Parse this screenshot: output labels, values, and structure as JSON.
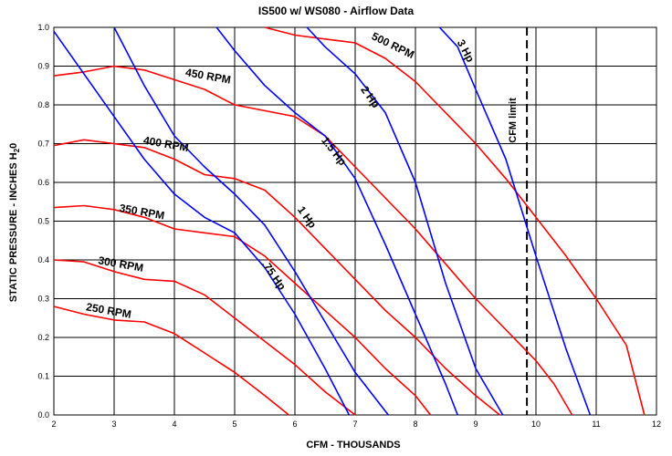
{
  "chart_data": {
    "type": "line",
    "title": "IS500 w/ WS080 - Airflow Data",
    "xlabel": "CFM - THOUSANDS",
    "ylabel_main": "STATIC PRESSURE - INCHES H",
    "ylabel_sub": "2",
    "ylabel_tail": "0",
    "xlim": [
      2,
      12
    ],
    "ylim": [
      0,
      1.0
    ],
    "xticks": [
      "2",
      "3",
      "4",
      "5",
      "6",
      "7",
      "8",
      "9",
      "10",
      "11",
      "12"
    ],
    "yticks": [
      "0.0",
      "0.1",
      "0.2",
      "0.3",
      "0.4",
      "0.5",
      "0.6",
      "0.7",
      "0.8",
      "0.9",
      "1.0"
    ],
    "grid": true,
    "colors": {
      "rpm": "#ff0000",
      "hp": "#0000ff",
      "limit": "#000000",
      "grid": "#000000"
    },
    "rpm_curves": [
      {
        "name": "250 RPM",
        "points": [
          [
            2.0,
            0.28
          ],
          [
            2.5,
            0.26
          ],
          [
            3.0,
            0.245
          ],
          [
            3.5,
            0.24
          ],
          [
            4.0,
            0.21
          ],
          [
            4.5,
            0.16
          ],
          [
            5.0,
            0.11
          ],
          [
            5.5,
            0.05
          ],
          [
            5.9,
            0.0
          ]
        ],
        "label_at": [
          2.9,
          0.26
        ],
        "label_angle": 10
      },
      {
        "name": "300 RPM",
        "points": [
          [
            2.0,
            0.4
          ],
          [
            2.5,
            0.395
          ],
          [
            3.0,
            0.37
          ],
          [
            3.5,
            0.35
          ],
          [
            4.0,
            0.345
          ],
          [
            4.5,
            0.31
          ],
          [
            5.0,
            0.25
          ],
          [
            5.5,
            0.19
          ],
          [
            6.0,
            0.13
          ],
          [
            6.5,
            0.06
          ],
          [
            7.0,
            0.0
          ]
        ],
        "label_at": [
          3.1,
          0.38
        ],
        "label_angle": 10
      },
      {
        "name": "350 RPM",
        "points": [
          [
            2.0,
            0.535
          ],
          [
            2.5,
            0.54
          ],
          [
            3.0,
            0.53
          ],
          [
            3.5,
            0.51
          ],
          [
            4.0,
            0.48
          ],
          [
            4.5,
            0.47
          ],
          [
            5.0,
            0.46
          ],
          [
            5.5,
            0.41
          ],
          [
            6.0,
            0.34
          ],
          [
            6.5,
            0.27
          ],
          [
            7.0,
            0.2
          ],
          [
            7.5,
            0.12
          ],
          [
            8.0,
            0.05
          ],
          [
            8.25,
            0.0
          ]
        ],
        "label_at": [
          3.45,
          0.515
        ],
        "label_angle": 10
      },
      {
        "name": "400 RPM",
        "points": [
          [
            2.0,
            0.695
          ],
          [
            2.5,
            0.71
          ],
          [
            3.0,
            0.7
          ],
          [
            3.5,
            0.69
          ],
          [
            4.0,
            0.66
          ],
          [
            4.5,
            0.62
          ],
          [
            5.0,
            0.61
          ],
          [
            5.5,
            0.58
          ],
          [
            6.0,
            0.51
          ],
          [
            6.5,
            0.43
          ],
          [
            7.0,
            0.35
          ],
          [
            7.5,
            0.27
          ],
          [
            8.0,
            0.2
          ],
          [
            8.5,
            0.12
          ],
          [
            9.0,
            0.05
          ],
          [
            9.4,
            0.0
          ]
        ],
        "label_at": [
          3.85,
          0.69
        ],
        "label_angle": 10
      },
      {
        "name": "450 RPM",
        "points": [
          [
            2.0,
            0.875
          ],
          [
            2.5,
            0.885
          ],
          [
            3.0,
            0.9
          ],
          [
            3.5,
            0.89
          ],
          [
            4.0,
            0.865
          ],
          [
            4.5,
            0.84
          ],
          [
            5.0,
            0.8
          ],
          [
            5.5,
            0.785
          ],
          [
            6.0,
            0.77
          ],
          [
            6.5,
            0.72
          ],
          [
            7.0,
            0.64
          ],
          [
            7.5,
            0.56
          ],
          [
            8.0,
            0.48
          ],
          [
            8.5,
            0.39
          ],
          [
            9.0,
            0.3
          ],
          [
            9.5,
            0.22
          ],
          [
            10.0,
            0.14
          ],
          [
            10.3,
            0.08
          ],
          [
            10.6,
            0.0
          ]
        ],
        "label_at": [
          4.55,
          0.865
        ],
        "label_angle": 10
      },
      {
        "name": "500 RPM",
        "points": [
          [
            5.5,
            1.0
          ],
          [
            6.0,
            0.98
          ],
          [
            6.5,
            0.97
          ],
          [
            7.0,
            0.96
          ],
          [
            7.5,
            0.92
          ],
          [
            8.0,
            0.86
          ],
          [
            8.5,
            0.78
          ],
          [
            9.0,
            0.7
          ],
          [
            9.5,
            0.61
          ],
          [
            10.0,
            0.51
          ],
          [
            10.5,
            0.41
          ],
          [
            11.0,
            0.3
          ],
          [
            11.5,
            0.18
          ],
          [
            11.8,
            0.0
          ]
        ],
        "label_at": [
          7.6,
          0.945
        ],
        "label_angle": 26
      }
    ],
    "hp_curves": [
      {
        "name": ".75 Hp",
        "points": [
          [
            2.0,
            0.99
          ],
          [
            3.0,
            0.77
          ],
          [
            3.5,
            0.66
          ],
          [
            4.0,
            0.57
          ],
          [
            4.5,
            0.51
          ],
          [
            5.0,
            0.47
          ],
          [
            5.5,
            0.38
          ],
          [
            6.0,
            0.26
          ],
          [
            6.5,
            0.12
          ],
          [
            6.9,
            0.0
          ]
        ],
        "label_at": [
          5.6,
          0.355
        ],
        "label_angle": 55
      },
      {
        "name": "1 Hp",
        "points": [
          [
            3.0,
            1.0
          ],
          [
            3.5,
            0.85
          ],
          [
            4.0,
            0.72
          ],
          [
            4.5,
            0.64
          ],
          [
            5.0,
            0.57
          ],
          [
            5.5,
            0.49
          ],
          [
            6.0,
            0.37
          ],
          [
            6.5,
            0.24
          ],
          [
            7.0,
            0.11
          ],
          [
            7.55,
            0.0
          ]
        ],
        "label_at": [
          6.15,
          0.505
        ],
        "label_angle": 55
      },
      {
        "name": "1.5 Hp",
        "points": [
          [
            4.7,
            1.0
          ],
          [
            5.0,
            0.94
          ],
          [
            5.5,
            0.85
          ],
          [
            6.0,
            0.78
          ],
          [
            6.5,
            0.72
          ],
          [
            7.0,
            0.61
          ],
          [
            7.5,
            0.44
          ],
          [
            8.0,
            0.26
          ],
          [
            8.5,
            0.08
          ],
          [
            8.7,
            0.0
          ]
        ],
        "label_at": [
          6.6,
          0.675
        ],
        "label_angle": 52
      },
      {
        "name": "2 Hp",
        "points": [
          [
            6.2,
            1.0
          ],
          [
            6.5,
            0.95
          ],
          [
            7.0,
            0.88
          ],
          [
            7.5,
            0.78
          ],
          [
            8.0,
            0.6
          ],
          [
            8.5,
            0.34
          ],
          [
            9.0,
            0.12
          ],
          [
            9.45,
            0.0
          ]
        ],
        "label_at": [
          7.2,
          0.815
        ],
        "label_angle": 55
      },
      {
        "name": "3 Hp",
        "points": [
          [
            8.4,
            1.0
          ],
          [
            8.7,
            0.95
          ],
          [
            9.0,
            0.84
          ],
          [
            9.5,
            0.66
          ],
          [
            10.0,
            0.41
          ],
          [
            10.5,
            0.17
          ],
          [
            10.9,
            0.0
          ]
        ],
        "label_at": [
          8.78,
          0.935
        ],
        "label_angle": 62
      }
    ],
    "limit_line": {
      "x": 9.85,
      "label": "CFM limit"
    }
  }
}
